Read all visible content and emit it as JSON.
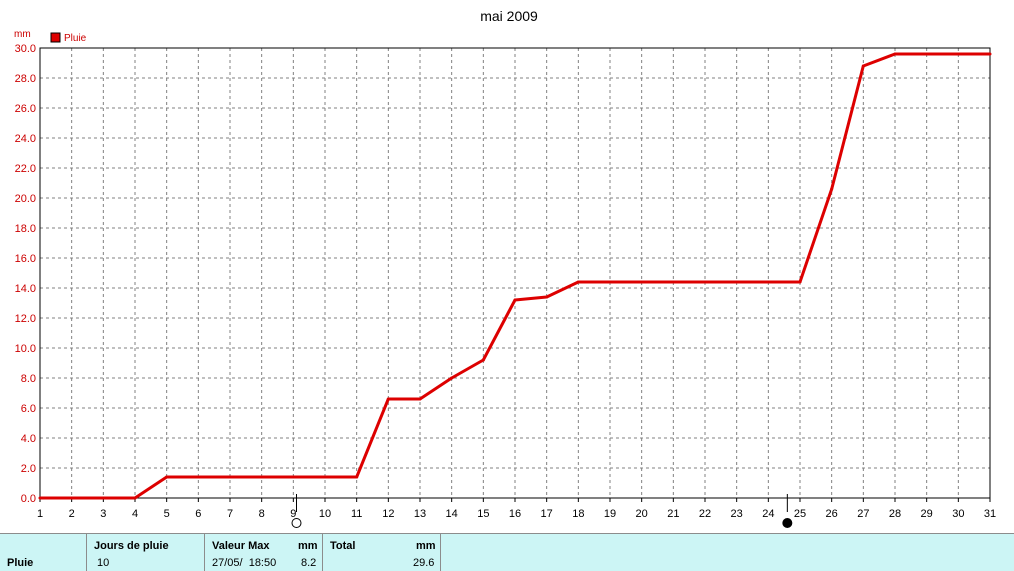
{
  "chart_data": {
    "type": "line",
    "title": "mai 2009",
    "ylabel": "mm",
    "legend": "Pluie",
    "legend_position": "top-left",
    "grid": true,
    "color": "#dd0000",
    "xlim": [
      1,
      31
    ],
    "ylim": [
      0,
      30
    ],
    "x_ticks": [
      1,
      2,
      3,
      4,
      5,
      6,
      7,
      8,
      9,
      10,
      11,
      12,
      13,
      14,
      15,
      16,
      17,
      18,
      19,
      20,
      21,
      22,
      23,
      24,
      25,
      26,
      27,
      28,
      29,
      30,
      31
    ],
    "y_ticks": [
      "0.0",
      "2.0",
      "4.0",
      "6.0",
      "8.0",
      "10.0",
      "12.0",
      "14.0",
      "16.0",
      "18.0",
      "20.0",
      "22.0",
      "24.0",
      "26.0",
      "28.0",
      "30.0"
    ],
    "x": [
      1,
      2,
      3,
      4,
      5,
      6,
      7,
      8,
      9,
      10,
      11,
      12,
      13,
      14,
      15,
      16,
      17,
      18,
      19,
      20,
      21,
      22,
      23,
      24,
      25,
      26,
      27,
      28,
      29,
      30,
      31
    ],
    "y": [
      0.0,
      0.0,
      0.0,
      0.0,
      1.4,
      1.4,
      1.4,
      1.4,
      1.4,
      1.4,
      1.4,
      6.6,
      6.6,
      8.0,
      9.2,
      13.2,
      13.4,
      14.4,
      14.4,
      14.4,
      14.4,
      14.4,
      14.4,
      14.4,
      14.4,
      20.6,
      28.8,
      29.6,
      29.6,
      29.6,
      29.6
    ],
    "moon_phases": [
      {
        "x": 9.1,
        "phase": "full-moon"
      },
      {
        "x": 24.6,
        "phase": "new-moon"
      }
    ]
  },
  "summary": {
    "row_label": "Pluie",
    "jours_header": "Jours de pluie",
    "jours_value": "10",
    "max_header": "Valeur Max",
    "max_unit": "mm",
    "max_date": "27/05/  18:50",
    "max_value": "8.2",
    "total_header": "Total",
    "total_unit": "mm",
    "total_value": "29.6"
  }
}
